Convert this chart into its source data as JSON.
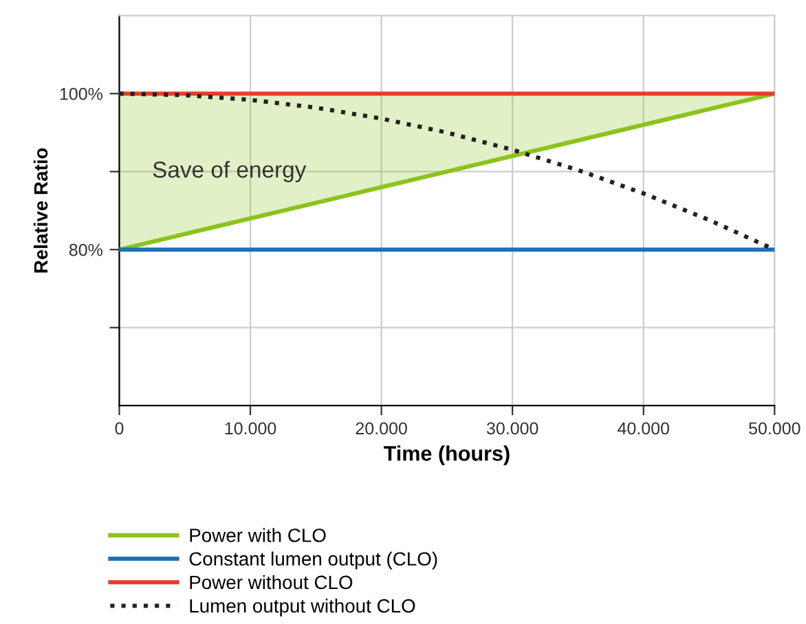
{
  "chart_data": {
    "type": "line",
    "xlabel": "Time (hours)",
    "ylabel": "Relative Ratio",
    "xlim": [
      0,
      50000
    ],
    "ylim": [
      60,
      110
    ],
    "xticks": [
      0,
      {
        "value": 10000,
        "label": "10.000"
      },
      {
        "value": 20000,
        "label": "20.000"
      },
      {
        "value": 30000,
        "label": "30.000"
      },
      {
        "value": 40000,
        "label": "40.000"
      },
      {
        "value": 50000,
        "label": "50.000"
      }
    ],
    "yticks": [
      {
        "value": 70,
        "label": null
      },
      {
        "value": 80,
        "label": "80%"
      },
      {
        "value": 90,
        "label": null
      },
      {
        "value": 100,
        "label": "100%"
      }
    ],
    "grid": true,
    "legend": "bottom",
    "annotations": [
      "Save of energy"
    ],
    "series": [
      {
        "name": "Power with CLO",
        "color": "#8cc31e",
        "x": [
          0,
          50000
        ],
        "values": [
          80,
          100
        ],
        "lower": [
          80,
          100
        ],
        "upper": [
          100,
          100
        ],
        "line_style": "solid"
      },
      {
        "name": "Constant lumen output (CLO)",
        "color": "#1f6fb5",
        "x": [
          0,
          50000
        ],
        "values": [
          80,
          80
        ],
        "line_style": "solid"
      },
      {
        "name": "Power without CLO",
        "color": "#e2402a",
        "x": [
          0,
          50000
        ],
        "values": [
          100,
          100
        ],
        "line_style": "solid"
      },
      {
        "name": "Lumen output without CLO",
        "color": "#222222",
        "x": [
          0,
          5000,
          10000,
          15000,
          20000,
          25000,
          30000,
          35000,
          40000,
          45000,
          50000
        ],
        "values": [
          100,
          99.8,
          99.2,
          98.2,
          96.8,
          95,
          92.8,
          90.2,
          87.2,
          83.8,
          80
        ],
        "line_style": "dotted"
      }
    ]
  }
}
